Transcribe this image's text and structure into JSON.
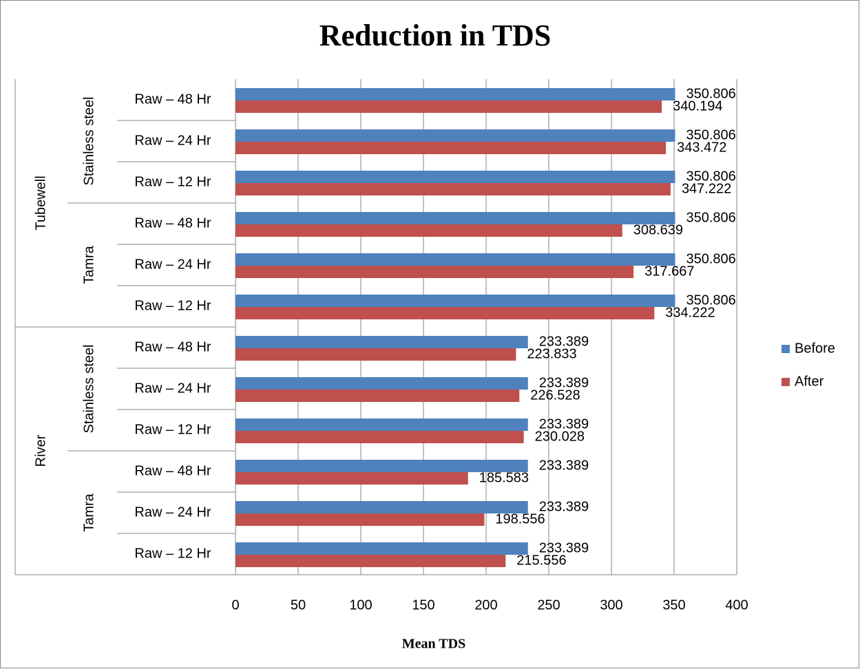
{
  "chart_data": {
    "type": "bar",
    "orientation": "horizontal",
    "title": "Reduction in TDS",
    "x_label": "Mean TDS",
    "categories": [
      "Raw – 48 Hr",
      "Raw – 24 Hr",
      "Raw – 12 Hr",
      "Raw – 48 Hr",
      "Raw – 24 Hr",
      "Raw – 12 Hr",
      "Raw – 48 Hr",
      "Raw – 24 Hr",
      "Raw – 12 Hr",
      "Raw – 48 Hr",
      "Raw – 24 Hr",
      "Raw – 12 Hr"
    ],
    "groups": [
      "Stainless steel",
      "Tamra",
      "Stainless steel",
      "Tamra"
    ],
    "supergroups": [
      "Tubewell",
      "River"
    ],
    "series": [
      {
        "name": "Before",
        "color": "#4f81bd",
        "values": [
          350.806,
          350.806,
          350.806,
          350.806,
          350.806,
          350.806,
          233.389,
          233.389,
          233.389,
          233.389,
          233.389,
          233.389
        ]
      },
      {
        "name": "After",
        "color": "#c0504d",
        "values": [
          340.194,
          343.472,
          347.222,
          308.639,
          317.667,
          334.222,
          223.833,
          226.528,
          230.028,
          185.583,
          198.556,
          215.556
        ]
      }
    ],
    "xlim": [
      0,
      400
    ],
    "xticks": [
      0,
      50,
      100,
      150,
      200,
      250,
      300,
      350,
      400
    ],
    "grid": true,
    "legend": "right"
  }
}
